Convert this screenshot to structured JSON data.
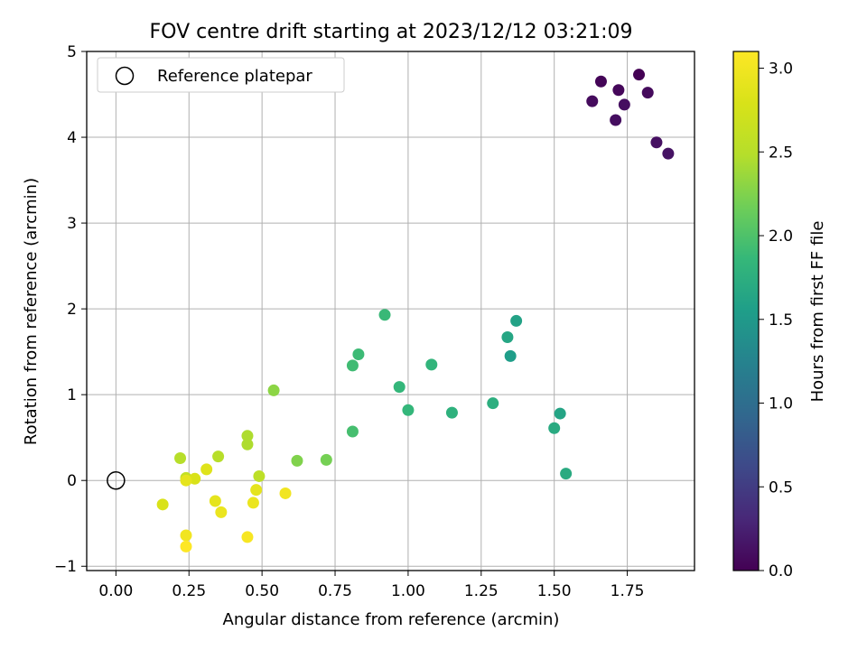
{
  "chart_data": {
    "type": "scatter",
    "title": "FOV centre drift starting at 2023/12/12 03:21:09",
    "xlabel": "Angular distance from reference (arcmin)",
    "ylabel": "Rotation from reference (arcmin)",
    "xlim": [
      -0.1,
      1.98
    ],
    "ylim": [
      -1.05,
      5.0
    ],
    "xticks": [
      "0.00",
      "0.25",
      "0.50",
      "0.75",
      "1.00",
      "1.25",
      "1.50",
      "1.75"
    ],
    "yticks": [
      "−1",
      "0",
      "1",
      "2",
      "3",
      "4",
      "5"
    ],
    "grid": true,
    "legend": {
      "position": "top-left",
      "entries": [
        "Reference platepar"
      ]
    },
    "reference_point": {
      "x": 0.0,
      "y": 0.0
    },
    "colorbar": {
      "label": "Hours from first FF file",
      "range": [
        0.0,
        3.1
      ],
      "ticks": [
        "0.0",
        "0.5",
        "1.0",
        "1.5",
        "2.0",
        "2.5",
        "3.0"
      ],
      "colormap": "viridis"
    },
    "points": [
      {
        "x": 1.79,
        "y": 4.73,
        "h": 0.0
      },
      {
        "x": 1.66,
        "y": 4.65,
        "h": 0.03
      },
      {
        "x": 1.72,
        "y": 4.55,
        "h": 0.05
      },
      {
        "x": 1.82,
        "y": 4.52,
        "h": 0.07
      },
      {
        "x": 1.63,
        "y": 4.42,
        "h": 0.08
      },
      {
        "x": 1.74,
        "y": 4.38,
        "h": 0.1
      },
      {
        "x": 1.71,
        "y": 4.2,
        "h": 0.1
      },
      {
        "x": 1.85,
        "y": 3.94,
        "h": 0.12
      },
      {
        "x": 1.89,
        "y": 3.81,
        "h": 0.14
      },
      {
        "x": 1.37,
        "y": 1.86,
        "h": 1.6
      },
      {
        "x": 1.34,
        "y": 1.67,
        "h": 1.65
      },
      {
        "x": 1.35,
        "y": 1.45,
        "h": 1.55
      },
      {
        "x": 1.52,
        "y": 0.78,
        "h": 1.63
      },
      {
        "x": 1.5,
        "y": 0.61,
        "h": 1.7
      },
      {
        "x": 1.54,
        "y": 0.08,
        "h": 1.7
      },
      {
        "x": 1.29,
        "y": 0.9,
        "h": 1.75
      },
      {
        "x": 1.15,
        "y": 0.79,
        "h": 1.78
      },
      {
        "x": 1.08,
        "y": 1.35,
        "h": 1.82
      },
      {
        "x": 1.0,
        "y": 0.82,
        "h": 1.85
      },
      {
        "x": 0.97,
        "y": 1.09,
        "h": 1.85
      },
      {
        "x": 0.92,
        "y": 1.93,
        "h": 1.88
      },
      {
        "x": 0.83,
        "y": 1.47,
        "h": 1.9
      },
      {
        "x": 0.81,
        "y": 1.34,
        "h": 1.92
      },
      {
        "x": 0.81,
        "y": 0.57,
        "h": 1.95
      },
      {
        "x": 0.72,
        "y": 0.24,
        "h": 2.2
      },
      {
        "x": 0.62,
        "y": 0.23,
        "h": 2.25
      },
      {
        "x": 0.54,
        "y": 1.05,
        "h": 2.3
      },
      {
        "x": 0.45,
        "y": 0.52,
        "h": 2.45
      },
      {
        "x": 0.45,
        "y": 0.42,
        "h": 2.45
      },
      {
        "x": 0.35,
        "y": 0.28,
        "h": 2.5
      },
      {
        "x": 0.22,
        "y": 0.26,
        "h": 2.5
      },
      {
        "x": 0.49,
        "y": 0.05,
        "h": 2.55
      },
      {
        "x": 0.24,
        "y": 0.03,
        "h": 2.6
      },
      {
        "x": 0.16,
        "y": -0.28,
        "h": 2.8
      },
      {
        "x": 0.27,
        "y": 0.02,
        "h": 2.8
      },
      {
        "x": 0.31,
        "y": 0.13,
        "h": 2.85
      },
      {
        "x": 0.24,
        "y": 0.0,
        "h": 2.9
      },
      {
        "x": 0.48,
        "y": -0.11,
        "h": 2.9
      },
      {
        "x": 0.34,
        "y": -0.24,
        "h": 2.9
      },
      {
        "x": 0.47,
        "y": -0.26,
        "h": 2.95
      },
      {
        "x": 0.36,
        "y": -0.37,
        "h": 2.95
      },
      {
        "x": 0.58,
        "y": -0.15,
        "h": 3.0
      },
      {
        "x": 0.24,
        "y": -0.64,
        "h": 3.0
      },
      {
        "x": 0.45,
        "y": -0.66,
        "h": 3.05
      },
      {
        "x": 0.24,
        "y": -0.77,
        "h": 3.1
      }
    ]
  }
}
